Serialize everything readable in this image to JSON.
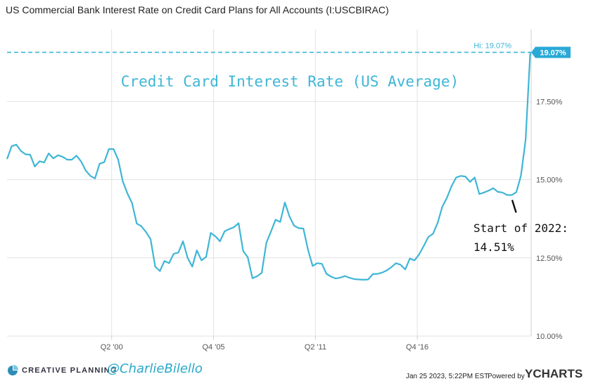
{
  "title": "US Commercial Bank Interest Rate on Credit Card Plans for All Accounts (I:USCBIRAC)",
  "chart_data": {
    "type": "line",
    "title": "US Commercial Bank Interest Rate on Credit Card Plans for All Accounts (I:USCBIRAC)",
    "subtitle": "Credit Card Interest Rate (US Average)",
    "ylim": [
      10.0,
      19.8
    ],
    "yticks": [
      "10.00%",
      "12.50%",
      "15.00%",
      "17.50%"
    ],
    "ytick_values": [
      10.0,
      12.5,
      15.0,
      17.5
    ],
    "xticks": [
      "Q2 '00",
      "Q4 '05",
      "Q2 '11",
      "Q4 '16"
    ],
    "xtick_values": [
      2000.25,
      2005.75,
      2011.25,
      2016.75
    ],
    "xlim": [
      1994.6,
      2022.9
    ],
    "grid": true,
    "series": [
      {
        "x": [
          1994.6,
          1994.85,
          1995.1,
          1995.35,
          1995.6,
          1995.85,
          1996.1,
          1996.35,
          1996.6,
          1996.85,
          1997.1,
          1997.35,
          1997.6,
          1997.85,
          1998.1,
          1998.35,
          1998.6,
          1998.85,
          1999.1,
          1999.35,
          1999.6,
          1999.85,
          2000.1,
          2000.35,
          2000.6,
          2000.85,
          2001.1,
          2001.35,
          2001.6,
          2001.85,
          2002.1,
          2002.35,
          2002.6,
          2002.85,
          2003.1,
          2003.35,
          2003.6,
          2003.85,
          2004.1,
          2004.35,
          2004.6,
          2004.85,
          2005.1,
          2005.35,
          2005.6,
          2005.85,
          2006.1,
          2006.35,
          2006.6,
          2006.85,
          2007.1,
          2007.35,
          2007.6,
          2007.85,
          2008.1,
          2008.35,
          2008.6,
          2008.85,
          2009.1,
          2009.35,
          2009.6,
          2009.85,
          2010.1,
          2010.35,
          2010.6,
          2010.85,
          2011.1,
          2011.35,
          2011.6,
          2011.85,
          2012.1,
          2012.35,
          2012.6,
          2012.85,
          2013.1,
          2013.35,
          2013.6,
          2013.85,
          2014.1,
          2014.35,
          2014.6,
          2014.85,
          2015.1,
          2015.35,
          2015.6,
          2015.85,
          2016.1,
          2016.35,
          2016.6,
          2016.85,
          2017.1,
          2017.35,
          2017.6,
          2017.85,
          2018.1,
          2018.35,
          2018.6,
          2018.85,
          2019.1,
          2019.35,
          2019.6,
          2019.85,
          2020.1,
          2020.35,
          2020.6,
          2020.85,
          2021.1,
          2021.35,
          2021.6,
          2021.85,
          2022.1,
          2022.35,
          2022.6,
          2022.85
        ],
        "values": [
          15.66,
          16.07,
          16.12,
          15.92,
          15.81,
          15.8,
          15.42,
          15.59,
          15.55,
          15.84,
          15.68,
          15.78,
          15.73,
          15.64,
          15.64,
          15.77,
          15.58,
          15.29,
          15.12,
          15.04,
          15.51,
          15.56,
          15.98,
          15.98,
          15.64,
          14.95,
          14.56,
          14.25,
          13.6,
          13.51,
          13.33,
          13.1,
          12.22,
          12.08,
          12.4,
          12.33,
          12.63,
          12.67,
          13.03,
          12.5,
          12.22,
          12.74,
          12.42,
          12.53,
          13.3,
          13.19,
          13.03,
          13.35,
          13.42,
          13.48,
          13.61,
          12.72,
          12.52,
          11.85,
          11.91,
          12.02,
          12.98,
          13.34,
          13.72,
          13.65,
          14.27,
          13.82,
          13.53,
          13.45,
          13.44,
          12.76,
          12.24,
          12.33,
          12.31,
          11.99,
          11.9,
          11.84,
          11.87,
          11.92,
          11.86,
          11.82,
          11.81,
          11.8,
          11.81,
          11.98,
          11.99,
          12.03,
          12.1,
          12.2,
          12.33,
          12.28,
          12.13,
          12.48,
          12.42,
          12.61,
          12.88,
          13.17,
          13.27,
          13.62,
          14.13,
          14.42,
          14.79,
          15.07,
          15.12,
          15.1,
          14.93,
          15.07,
          14.54,
          14.59,
          14.65,
          14.73,
          14.61,
          14.59,
          14.51,
          14.51,
          14.6,
          15.13,
          16.27,
          19.07
        ]
      }
    ],
    "reference_line": {
      "value": 19.07,
      "label": "Hi: 19.07%",
      "style": "dashed"
    },
    "last_value_badge": "19.07%",
    "annotation": {
      "text_line1": "Start of 2022:",
      "text_line2": "14.51%",
      "x": 2022.0,
      "y": 14.51
    }
  },
  "footer": {
    "brand": "CREATIVE PLANNING",
    "handle": "@CharlieBilello",
    "timestamp": "Jan 25 2023, 5:22PM EST.",
    "powered_by": "Powered by",
    "provider": "YCHARTS"
  },
  "colors": {
    "line": "#3fb6d6",
    "badge": "#2aa9d6",
    "annotation_text": "#111111",
    "grid": "#e2e2e2"
  }
}
